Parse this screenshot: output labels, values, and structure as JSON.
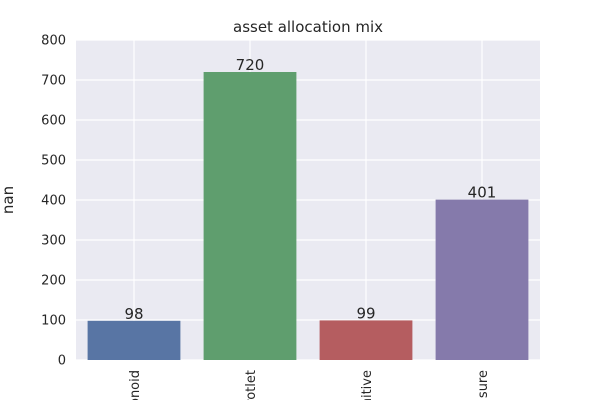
{
  "chart_data": {
    "type": "bar",
    "title": "asset allocation mix",
    "xlabel": "",
    "ylabel": "nan",
    "categories": [
      "onoid",
      "rotlet",
      "nitive",
      "sure"
    ],
    "values": [
      98,
      720,
      99,
      401
    ],
    "data_labels": [
      "98",
      "720",
      "99",
      "401"
    ],
    "ylim": [
      0,
      800
    ],
    "yticks": [
      0,
      100,
      200,
      300,
      400,
      500,
      600,
      700,
      800
    ],
    "ytick_labels": [
      "0",
      "100",
      "200",
      "300",
      "400",
      "500",
      "600",
      "700",
      "800"
    ],
    "grid": true,
    "colors": [
      "#5875a4",
      "#5f9e6e",
      "#b55d60",
      "#857aab"
    ],
    "background": "#eaeaf2"
  }
}
